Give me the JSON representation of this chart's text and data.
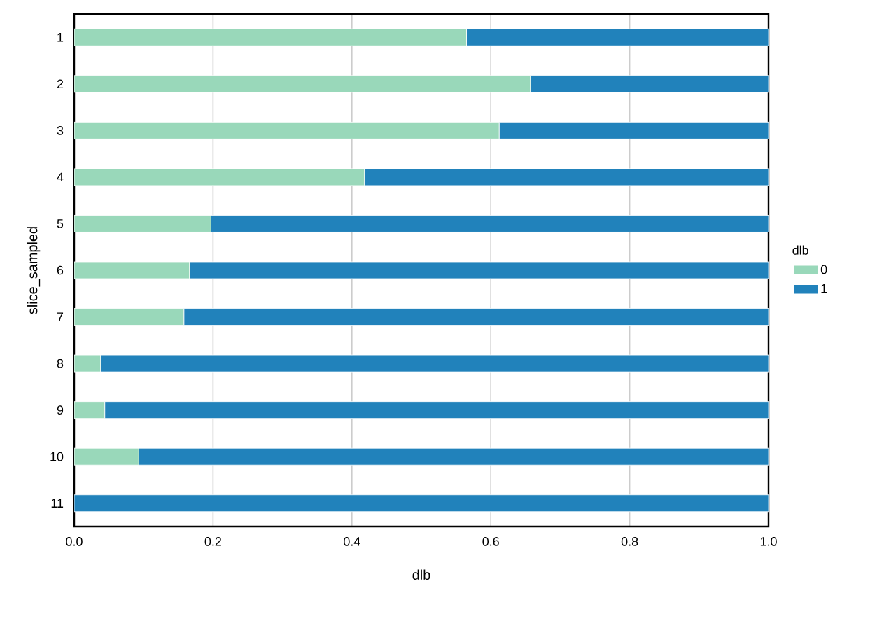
{
  "chart_data": {
    "type": "bar",
    "orientation": "horizontal",
    "stacked": true,
    "xlabel": "dlb",
    "ylabel": "slice_sampled",
    "legend_title": "dlb",
    "categories": [
      "1",
      "2",
      "3",
      "4",
      "5",
      "6",
      "7",
      "8",
      "9",
      "10",
      "11"
    ],
    "series": [
      {
        "name": "0",
        "color": "#99d8ba",
        "values": [
          0.565,
          0.657,
          0.612,
          0.418,
          0.197,
          0.166,
          0.158,
          0.038,
          0.044,
          0.093,
          0
        ]
      },
      {
        "name": "1",
        "color": "#2182bb",
        "values": [
          0.435,
          0.343,
          0.388,
          0.582,
          0.803,
          0.834,
          0.842,
          0.962,
          0.956,
          0.907,
          1
        ]
      }
    ],
    "xlim": [
      0,
      1
    ],
    "xticks": [
      {
        "value": 0,
        "label": "0.0"
      },
      0.2,
      0.4,
      0.6,
      0.8,
      {
        "value": 1,
        "label": "1.0"
      }
    ],
    "grid": "x",
    "legend": "right"
  }
}
